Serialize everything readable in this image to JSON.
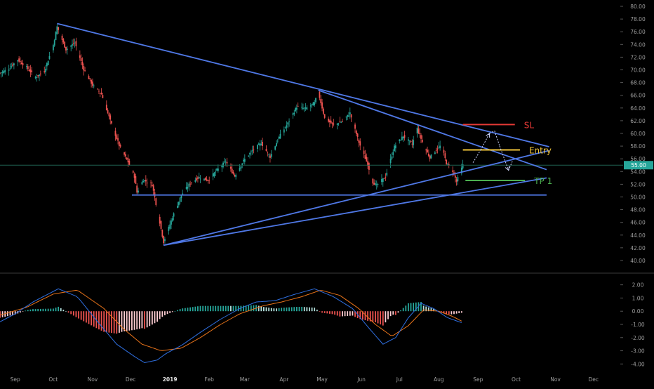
{
  "chart_data": [
    {
      "type": "candlestick",
      "title": "",
      "x_ticks": [
        "Sep",
        "Oct",
        "Nov",
        "Dec",
        "2019",
        "Feb",
        "Mar",
        "Apr",
        "May",
        "Jun",
        "Jul",
        "Aug",
        "Sep",
        "Oct",
        "Nov",
        "Dec"
      ],
      "y_ticks": [
        "80.00",
        "78.00",
        "76.00",
        "74.00",
        "72.00",
        "70.00",
        "68.00",
        "66.00",
        "64.00",
        "62.00",
        "60.00",
        "58.00",
        "56.00",
        "54.00",
        "52.00",
        "50.00",
        "48.00",
        "46.00",
        "44.00",
        "42.00",
        "40.00"
      ],
      "ylim": [
        39.5,
        80.5
      ],
      "last_price": 55.0,
      "last_price_label": "55.00",
      "colors": {
        "up": "#26a69a",
        "down": "#ef5350",
        "trendline": "#4f78e6",
        "price_line": "#1f5f4f"
      },
      "price_path": [
        [
          "2018-08-20",
          69.5
        ],
        [
          "2018-08-27",
          70.2
        ],
        [
          "2018-09-03",
          71.6
        ],
        [
          "2018-09-10",
          70.4
        ],
        [
          "2018-09-17",
          68.8
        ],
        [
          "2018-09-24",
          69.8
        ],
        [
          "2018-10-01",
          73.9
        ],
        [
          "2018-10-04",
          76.8
        ],
        [
          "2018-10-11",
          73.2
        ],
        [
          "2018-10-18",
          74.3
        ],
        [
          "2018-10-25",
          70.1
        ],
        [
          "2018-11-01",
          67.6
        ],
        [
          "2018-11-08",
          66.2
        ],
        [
          "2018-11-15",
          62.0
        ],
        [
          "2018-11-22",
          58.1
        ],
        [
          "2018-11-29",
          55.5
        ],
        [
          "2018-12-04",
          53.2
        ],
        [
          "2018-12-06",
          50.7
        ],
        [
          "2018-12-11",
          52.7
        ],
        [
          "2018-12-18",
          51.9
        ],
        [
          "2018-12-24",
          46.0
        ],
        [
          "2018-12-27",
          42.9
        ],
        [
          "2019-01-03",
          46.8
        ],
        [
          "2019-01-10",
          50.3
        ],
        [
          "2019-01-17",
          52.2
        ],
        [
          "2019-01-24",
          53.1
        ],
        [
          "2019-01-31",
          52.6
        ],
        [
          "2019-02-07",
          54.2
        ],
        [
          "2019-02-14",
          55.6
        ],
        [
          "2019-02-21",
          53.3
        ],
        [
          "2019-02-28",
          55.7
        ],
        [
          "2019-03-07",
          57.3
        ],
        [
          "2019-03-14",
          58.5
        ],
        [
          "2019-03-21",
          56.3
        ],
        [
          "2019-03-28",
          59.4
        ],
        [
          "2019-04-04",
          61.6
        ],
        [
          "2019-04-11",
          64.2
        ],
        [
          "2019-04-18",
          63.9
        ],
        [
          "2019-04-25",
          64.8
        ],
        [
          "2019-04-28",
          66.5
        ],
        [
          "2019-05-03",
          62.4
        ],
        [
          "2019-05-10",
          61.3
        ],
        [
          "2019-05-17",
          61.9
        ],
        [
          "2019-05-23",
          63.2
        ],
        [
          "2019-05-30",
          58.6
        ],
        [
          "2019-06-06",
          55.1
        ],
        [
          "2019-06-10",
          52.3
        ],
        [
          "2019-06-13",
          51.8
        ],
        [
          "2019-06-20",
          53.2
        ],
        [
          "2019-06-27",
          57.9
        ],
        [
          "2019-07-04",
          59.6
        ],
        [
          "2019-07-11",
          58.3
        ],
        [
          "2019-07-15",
          60.8
        ],
        [
          "2019-07-20",
          58.1
        ],
        [
          "2019-07-25",
          56.2
        ],
        [
          "2019-07-30",
          57.4
        ],
        [
          "2019-08-03",
          58.2
        ],
        [
          "2019-08-07",
          55.3
        ],
        [
          "2019-08-12",
          54.1
        ],
        [
          "2019-08-15",
          52.4
        ],
        [
          "2019-08-20",
          55.0
        ]
      ],
      "annotations": {
        "sl": {
          "label": "SL",
          "price": 61.4,
          "x_start": "2019-08-20",
          "x_end": "2019-09-30",
          "color": "#e53935"
        },
        "entry": {
          "label": "Entry",
          "price": 57.4,
          "x_start": "2019-08-20",
          "x_end": "2019-10-04",
          "color": "#f0c43a"
        },
        "tp1": {
          "label": "TP 1",
          "price": 52.6,
          "x_start": "2019-08-22",
          "x_end": "2019-10-08",
          "color": "#4caf50"
        },
        "trendlines": [
          {
            "start": [
              "2018-10-04",
              77.3
            ],
            "end": [
              "2019-10-27",
              57.9
            ]
          },
          {
            "start": [
              "2019-04-28",
              66.8
            ],
            "end": [
              "2019-10-25",
              54.3
            ]
          },
          {
            "start": [
              "2018-12-27",
              42.4
            ],
            "end": [
              "2019-10-27",
              57.3
            ]
          },
          {
            "start": [
              "2018-12-27",
              42.4
            ],
            "end": [
              "2019-10-25",
              53.0
            ]
          },
          {
            "start": [
              "2018-12-02",
              50.3
            ],
            "end": [
              "2019-10-25",
              50.3
            ]
          }
        ],
        "projection_path": [
          [
            "2019-08-28",
            55.4
          ],
          [
            "2019-09-03",
            57.4
          ],
          [
            "2019-09-10",
            60.0
          ],
          [
            "2019-09-14",
            60.4
          ],
          [
            "2019-09-18",
            58.0
          ],
          [
            "2019-09-25",
            54.2
          ],
          [
            "2019-09-28",
            55.6
          ]
        ]
      }
    },
    {
      "type": "macd",
      "y_ticks": [
        "2.00",
        "1.00",
        "0.00",
        "-1.00",
        "-2.00",
        "-3.00",
        "-4.00"
      ],
      "ylim": [
        -4.3,
        2.3
      ],
      "colors": {
        "macd": "#2f6fe0",
        "signal": "#e8731a",
        "hist_pos_strong": "#26a69a",
        "hist_pos_weak": "#b2dfdb",
        "hist_neg_strong": "#ef5350",
        "hist_neg_weak": "#ffcdd2"
      },
      "macd": [
        [
          "2018-08-20",
          -0.8
        ],
        [
          "2018-09-01",
          -0.2
        ],
        [
          "2018-09-15",
          0.7
        ],
        [
          "2018-10-05",
          1.7
        ],
        [
          "2018-10-20",
          1.1
        ],
        [
          "2018-11-05",
          -0.8
        ],
        [
          "2018-11-20",
          -2.5
        ],
        [
          "2018-12-05",
          -3.5
        ],
        [
          "2018-12-12",
          -3.9
        ],
        [
          "2018-12-22",
          -3.7
        ],
        [
          "2018-12-29",
          -3.2
        ],
        [
          "2019-01-10",
          -2.6
        ],
        [
          "2019-01-25",
          -1.6
        ],
        [
          "2019-02-10",
          -0.6
        ],
        [
          "2019-02-25",
          0.2
        ],
        [
          "2019-03-10",
          0.7
        ],
        [
          "2019-03-25",
          0.8
        ],
        [
          "2019-04-10",
          1.3
        ],
        [
          "2019-04-25",
          1.7
        ],
        [
          "2019-05-10",
          1.1
        ],
        [
          "2019-05-25",
          0.2
        ],
        [
          "2019-06-08",
          -1.4
        ],
        [
          "2019-06-18",
          -2.5
        ],
        [
          "2019-06-28",
          -2.0
        ],
        [
          "2019-07-08",
          -0.5
        ],
        [
          "2019-07-18",
          0.6
        ],
        [
          "2019-07-28",
          0.2
        ],
        [
          "2019-08-08",
          -0.5
        ],
        [
          "2019-08-20",
          -0.9
        ]
      ],
      "signal": [
        [
          "2018-08-20",
          -0.3
        ],
        [
          "2018-09-10",
          0.3
        ],
        [
          "2018-10-01",
          1.3
        ],
        [
          "2018-10-20",
          1.6
        ],
        [
          "2018-11-10",
          0.2
        ],
        [
          "2018-11-25",
          -1.3
        ],
        [
          "2018-12-10",
          -2.5
        ],
        [
          "2018-12-25",
          -3.0
        ],
        [
          "2019-01-10",
          -2.8
        ],
        [
          "2019-01-25",
          -2.0
        ],
        [
          "2019-02-10",
          -1.0
        ],
        [
          "2019-02-25",
          -0.2
        ],
        [
          "2019-03-15",
          0.4
        ],
        [
          "2019-03-30",
          0.7
        ],
        [
          "2019-04-15",
          1.1
        ],
        [
          "2019-04-30",
          1.6
        ],
        [
          "2019-05-15",
          1.2
        ],
        [
          "2019-05-30",
          0.2
        ],
        [
          "2019-06-12",
          -1.0
        ],
        [
          "2019-06-25",
          -1.9
        ],
        [
          "2019-07-08",
          -1.1
        ],
        [
          "2019-07-20",
          0.1
        ],
        [
          "2019-08-01",
          0.0
        ],
        [
          "2019-08-12",
          -0.4
        ],
        [
          "2019-08-20",
          -0.8
        ]
      ]
    }
  ]
}
